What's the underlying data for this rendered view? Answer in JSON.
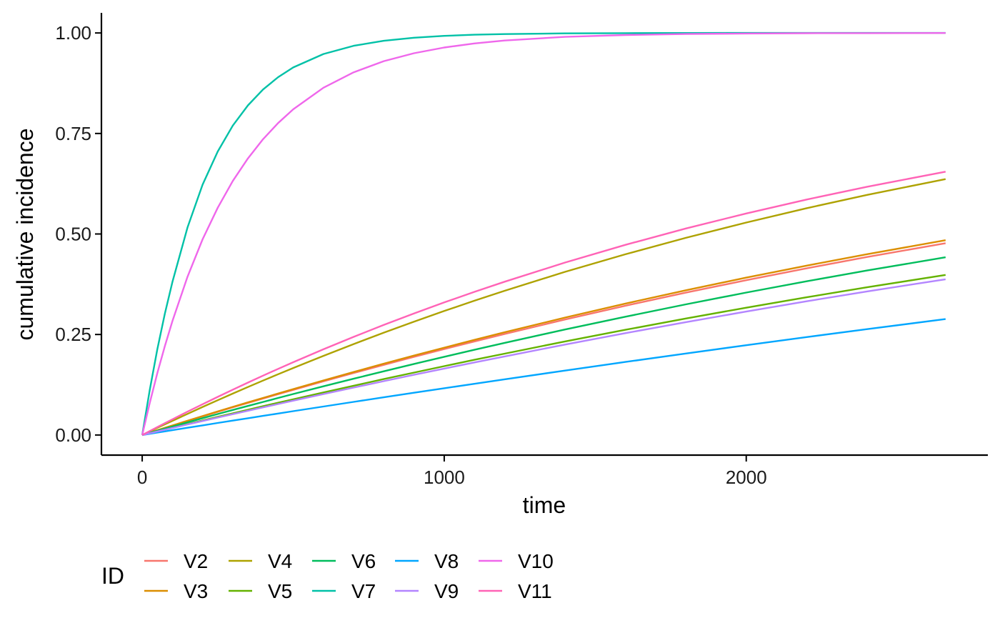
{
  "chart_data": {
    "type": "line",
    "xlabel": "time",
    "ylabel": "cumulative incidence",
    "xlim": [
      -135,
      2800
    ],
    "ylim": [
      -0.05,
      1.05
    ],
    "x_ticks": [
      0,
      1000,
      2000
    ],
    "x_tick_labels": [
      "0",
      "1000",
      "2000"
    ],
    "y_ticks": [
      0,
      0.25,
      0.5,
      0.75,
      1.0
    ],
    "y_tick_labels": [
      "0.00",
      "0.25",
      "0.50",
      "0.75",
      "1.00"
    ],
    "grid": false,
    "legend_title": "ID",
    "legend_position": "bottom",
    "x": [
      0,
      25,
      50,
      75,
      100,
      150,
      200,
      250,
      300,
      350,
      400,
      450,
      500,
      600,
      700,
      800,
      900,
      1000,
      1100,
      1200,
      1400,
      1600,
      1800,
      2000,
      2200,
      2400,
      2660
    ],
    "series": [
      {
        "name": "V2",
        "color": "#F8766D",
        "values": [
          0.0,
          0.0059,
          0.0117,
          0.0175,
          0.0233,
          0.0348,
          0.0463,
          0.0576,
          0.0688,
          0.0798,
          0.0908,
          0.1016,
          0.1123,
          0.1335,
          0.1542,
          0.1745,
          0.1943,
          0.2138,
          0.2327,
          0.2513,
          0.2873,
          0.3215,
          0.3541,
          0.3851,
          0.4146,
          0.4427,
          0.477
        ]
      },
      {
        "name": "V3",
        "color": "#DB8E00",
        "values": [
          0.0,
          0.006,
          0.0119,
          0.0178,
          0.0237,
          0.0354,
          0.047,
          0.0585,
          0.0699,
          0.0811,
          0.0922,
          0.1032,
          0.1141,
          0.1357,
          0.1567,
          0.1774,
          0.1975,
          0.2173,
          0.2366,
          0.2555,
          0.2921,
          0.3269,
          0.36,
          0.3914,
          0.4213,
          0.4497,
          0.4845
        ]
      },
      {
        "name": "V4",
        "color": "#AEA200",
        "values": [
          0.0,
          0.0089,
          0.0178,
          0.0266,
          0.0353,
          0.0526,
          0.0697,
          0.0864,
          0.103,
          0.1193,
          0.1353,
          0.1511,
          0.1666,
          0.1969,
          0.2262,
          0.2545,
          0.2819,
          0.3084,
          0.334,
          0.3587,
          0.4058,
          0.4496,
          0.4904,
          0.5285,
          0.5641,
          0.5972,
          0.6365
        ]
      },
      {
        "name": "V5",
        "color": "#64B200",
        "values": [
          0.0,
          0.0046,
          0.0092,
          0.0137,
          0.0182,
          0.0273,
          0.0362,
          0.0452,
          0.054,
          0.0628,
          0.0715,
          0.0802,
          0.0888,
          0.1058,
          0.1226,
          0.1391,
          0.1553,
          0.1713,
          0.187,
          0.2024,
          0.2327,
          0.2617,
          0.2897,
          0.3166,
          0.3425,
          0.3674,
          0.3981
        ]
      },
      {
        "name": "V6",
        "color": "#00BD5C",
        "values": [
          0.0,
          0.0053,
          0.0106,
          0.0159,
          0.0211,
          0.0315,
          0.0419,
          0.0521,
          0.0623,
          0.0723,
          0.0823,
          0.0921,
          0.1019,
          0.1211,
          0.14,
          0.1585,
          0.1767,
          0.1945,
          0.212,
          0.2291,
          0.2624,
          0.2943,
          0.3249,
          0.3542,
          0.3823,
          0.4092,
          0.4421
        ]
      },
      {
        "name": "V7",
        "color": "#00C1A7",
        "values": [
          0.0,
          0.1125,
          0.2128,
          0.3018,
          0.3808,
          0.5162,
          0.6226,
          0.7051,
          0.7695,
          0.8198,
          0.8593,
          0.8901,
          0.9142,
          0.9476,
          0.9681,
          0.9806,
          0.9882,
          0.9928,
          0.9956,
          0.9973,
          0.999,
          0.9996,
          0.9999,
          1.0,
          1.0,
          1.0,
          1.0
        ]
      },
      {
        "name": "V8",
        "color": "#00A6FF",
        "values": [
          0.0,
          0.003,
          0.006,
          0.009,
          0.012,
          0.018,
          0.024,
          0.0299,
          0.0358,
          0.0417,
          0.0476,
          0.0535,
          0.0593,
          0.0709,
          0.0824,
          0.0938,
          0.1051,
          0.1163,
          0.1274,
          0.1385,
          0.1603,
          0.1817,
          0.2027,
          0.2233,
          0.2435,
          0.2633,
          0.2884
        ]
      },
      {
        "name": "V9",
        "color": "#B385FF",
        "values": [
          0.0,
          0.0044,
          0.0088,
          0.0132,
          0.0175,
          0.0262,
          0.0348,
          0.0434,
          0.0519,
          0.0603,
          0.0687,
          0.0771,
          0.0854,
          0.1018,
          0.118,
          0.1339,
          0.1497,
          0.1652,
          0.1804,
          0.1955,
          0.2249,
          0.2533,
          0.2807,
          0.3071,
          0.3326,
          0.3572,
          0.3874
        ]
      },
      {
        "name": "V10",
        "color": "#EF67EB",
        "values": [
          0.0,
          0.08,
          0.1536,
          0.2212,
          0.2834,
          0.3936,
          0.4866,
          0.5653,
          0.6318,
          0.6881,
          0.7357,
          0.776,
          0.8101,
          0.8637,
          0.9022,
          0.9298,
          0.9496,
          0.9638,
          0.974,
          0.9813,
          0.9903,
          0.995,
          0.9974,
          0.9986,
          0.9993,
          0.9996,
          0.9999
        ]
      },
      {
        "name": "V11",
        "color": "#FF63B6",
        "values": [
          0.0,
          0.0099,
          0.0197,
          0.0294,
          0.039,
          0.058,
          0.0766,
          0.0949,
          0.1128,
          0.1303,
          0.1476,
          0.1645,
          0.181,
          0.2132,
          0.2441,
          0.2738,
          0.3023,
          0.3297,
          0.356,
          0.3813,
          0.429,
          0.473,
          0.5136,
          0.551,
          0.5856,
          0.6174,
          0.6549
        ]
      }
    ]
  }
}
